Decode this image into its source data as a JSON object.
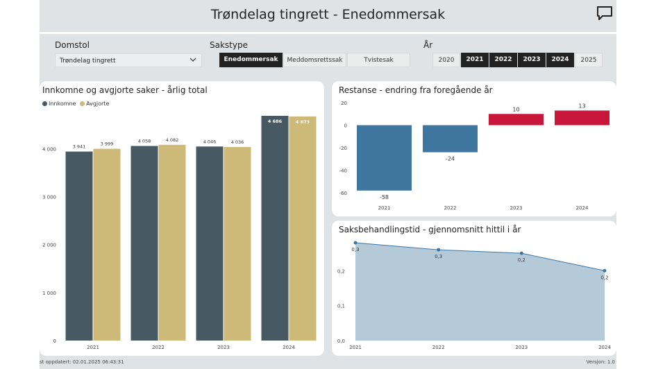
{
  "header": {
    "title": "Trøndelag tingrett - Enedommersak"
  },
  "filters": {
    "domstol": {
      "label": "Domstol",
      "value": "Trøndelag tingrett"
    },
    "sakstype": {
      "label": "Sakstype",
      "options": [
        {
          "label": "Enedommersak",
          "selected": true
        },
        {
          "label": "Meddomsrettssak",
          "selected": false
        },
        {
          "label": "Tvistesak",
          "selected": false
        }
      ]
    },
    "aar": {
      "label": "År",
      "options": [
        {
          "label": "2020",
          "selected": false
        },
        {
          "label": "2021",
          "selected": true
        },
        {
          "label": "2022",
          "selected": true
        },
        {
          "label": "2023",
          "selected": true
        },
        {
          "label": "2024",
          "selected": true
        },
        {
          "label": "2025",
          "selected": false
        }
      ]
    }
  },
  "panels": {
    "innkomne": {
      "title": "Innkomne og avgjorte saker - årlig total",
      "legend": [
        "Innkomne",
        "Avgjorte"
      ]
    },
    "restanse": {
      "title": "Restanse - endring fra foregående år"
    },
    "saksbehandlingstid": {
      "title": "Saksbehandlingstid - gjennomsnitt hittil i år"
    }
  },
  "footer": {
    "updated": "st oppdatert: 02.01.2025 06:43:31",
    "version": "Versjon: 1.0"
  },
  "colors": {
    "innkomne": "#475a63",
    "avgjorte": "#cdb978",
    "negative": "#3f76a0",
    "positive": "#c8173a",
    "area_fill": "#b4cad9",
    "area_line": "#3f76a0"
  },
  "chart_data": [
    {
      "type": "bar",
      "title": "Innkomne og avgjorte saker - årlig total",
      "categories": [
        "2021",
        "2022",
        "2023",
        "2024"
      ],
      "series": [
        {
          "name": "Innkomne",
          "values": [
            3941,
            4058,
            4046,
            4686
          ],
          "labels": [
            "3 941",
            "4 058",
            "4 046",
            "4 686"
          ]
        },
        {
          "name": "Avgjorte",
          "values": [
            3999,
            4082,
            4036,
            4673
          ],
          "labels": [
            "3 999",
            "4 082",
            "4 036",
            "4 673"
          ]
        }
      ],
      "ylim": [
        0,
        4686
      ],
      "yticks": [
        0,
        1000,
        2000,
        3000,
        4000
      ],
      "yticklabels": [
        "0",
        "1 000",
        "2 000",
        "3 000",
        "4 000"
      ],
      "legend": "top-left",
      "grid": false
    },
    {
      "type": "bar",
      "title": "Restanse - endring fra foregående år",
      "categories": [
        "2021",
        "2022",
        "2023",
        "2024"
      ],
      "values": [
        -58,
        -24,
        10,
        13
      ],
      "labels": [
        "-58",
        "-24",
        "10",
        "13"
      ],
      "ylim": [
        -60,
        20
      ],
      "yticks": [
        -60,
        -40,
        -20,
        0,
        20
      ],
      "yticklabels": [
        "-60",
        "-40",
        "-20",
        "0",
        "20"
      ],
      "grid": false
    },
    {
      "type": "area",
      "title": "Saksbehandlingstid - gjennomsnitt hittil i år",
      "x": [
        "2021",
        "2022",
        "2023",
        "2024"
      ],
      "values": [
        0.28,
        0.26,
        0.25,
        0.2
      ],
      "labels": [
        "0,3",
        "0,3",
        "0,2",
        "0,2"
      ],
      "ylim": [
        0,
        0.28
      ],
      "yticks": [
        0,
        0.1,
        0.2
      ],
      "yticklabels": [
        "0,0",
        "0,1",
        "0,2"
      ],
      "grid": false
    }
  ]
}
